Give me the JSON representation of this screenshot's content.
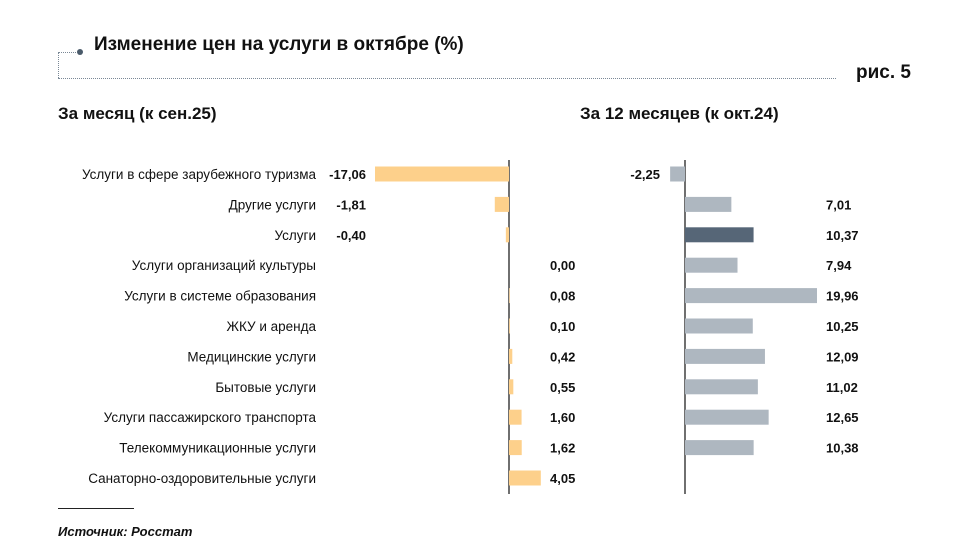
{
  "header": {
    "title": "Изменение цен на услуги в октябре (%)",
    "figure_label": "рис. 5"
  },
  "footer": {
    "source": "Источник: Росстат"
  },
  "colors": {
    "monthly_bar": "#fdd08b",
    "annual_bar": "#aeb7c0",
    "annual_total_bar": "#566677",
    "axis": "#222222"
  },
  "chart_data": [
    {
      "type": "bar",
      "orientation": "horizontal",
      "title": "За месяц (к сен.25)",
      "categories": [
        "Услуги в сфере зарубежного туризма",
        "Другие услуги",
        "Услуги",
        "Услуги организаций культуры",
        "Услуги в системе образования",
        "ЖКУ и аренда",
        "Медицинские услуги",
        "Бытовые услуги",
        "Услуги пассажирского транспорта",
        "Телекоммуникационные услуги",
        "Санаторно-оздоровительные услуги"
      ],
      "values": [
        -17.06,
        -1.81,
        -0.4,
        0.0,
        0.08,
        0.1,
        0.42,
        0.55,
        1.6,
        1.62,
        4.05
      ],
      "value_labels": [
        "-17,06",
        "-1,81",
        "-0,40",
        "0,00",
        "0,08",
        "0,10",
        "0,42",
        "0,55",
        "1,60",
        "1,62",
        "4,05"
      ],
      "xlim": [
        -17.06,
        4.05
      ]
    },
    {
      "type": "bar",
      "orientation": "horizontal",
      "title": "За 12 месяцев (к окт.24)",
      "categories": [
        "Услуги в сфере зарубежного туризма",
        "Другие услуги",
        "Услуги",
        "Услуги организаций культуры",
        "Услуги в системе образования",
        "ЖКУ и аренда",
        "Медицинские услуги",
        "Бытовые услуги",
        "Услуги пассажирского транспорта",
        "Телекоммуникационные услуги",
        "Санаторно-оздоровительные услуги"
      ],
      "values": [
        -2.25,
        7.01,
        10.37,
        7.94,
        19.96,
        10.25,
        12.09,
        11.02,
        12.65,
        10.38,
        null
      ],
      "value_labels": [
        "-2,25",
        "7,01",
        "10,37",
        "7,94",
        "19,96",
        "10,25",
        "12,09",
        "11,02",
        "12,65",
        "10,38",
        ""
      ],
      "highlight_category": "Услуги",
      "xlim": [
        -2.25,
        19.96
      ]
    }
  ]
}
